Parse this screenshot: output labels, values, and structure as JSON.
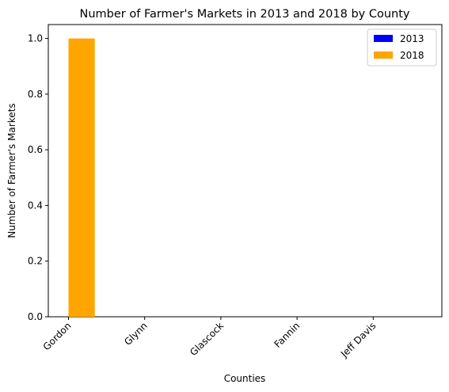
{
  "chart_data": {
    "type": "bar",
    "title": "Number of Farmer's Markets in 2013 and 2018 by County",
    "xlabel": "Counties",
    "ylabel": "Number of Farmer's Markets",
    "categories": [
      "Gordon",
      "Glynn",
      "Glascock",
      "Fannin",
      "Jeff Davis"
    ],
    "series": [
      {
        "name": "2013",
        "color": "#0000ff",
        "values": [
          0,
          0,
          0,
          0,
          0
        ]
      },
      {
        "name": "2018",
        "color": "#ffa500",
        "values": [
          1,
          0,
          0,
          0,
          0
        ]
      }
    ],
    "ylim": [
      0,
      1.05
    ],
    "yticks": [
      "0.0",
      "0.2",
      "0.4",
      "0.6",
      "0.8",
      "1.0"
    ],
    "grid": false,
    "legend_position": "top-right"
  }
}
